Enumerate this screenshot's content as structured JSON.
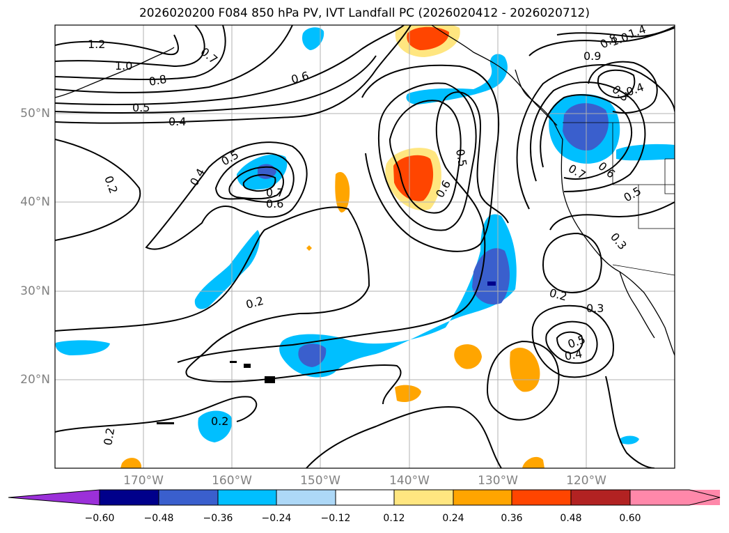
{
  "title": "2026020200 F084 850 hPa PV, IVT Landfall PC (2026020412 - 2026020712)",
  "axes": {
    "lon_labels": [
      "170°W",
      "160°W",
      "150°W",
      "140°W",
      "130°W",
      "120°W"
    ],
    "lat_labels": [
      "50°N",
      "40°N",
      "30°N",
      "20°N"
    ],
    "lon_range": [
      -180,
      -110
    ],
    "lat_range": [
      10,
      60
    ],
    "grid": true
  },
  "contour_labels": [
    "1.2",
    "1.0",
    "0.8",
    "0.7",
    "0.6",
    "0.5",
    "0.4",
    "0.5",
    "0.4",
    "0.7",
    "0.6",
    "0.2",
    "0.2",
    "0.5",
    "0.6",
    "0.2",
    "0.3",
    "0.5",
    "0.4",
    "0.2",
    "0.7",
    "0.6",
    "0.5",
    "0.3",
    "0.8",
    "1.0",
    "1.4",
    "0.9",
    "0.3",
    "0.4"
  ],
  "colorbar": {
    "ticks": [
      "−0.60",
      "−0.48",
      "−0.36",
      "−0.24",
      "−0.12",
      "0.12",
      "0.24",
      "0.36",
      "0.48",
      "0.60"
    ],
    "colors": [
      "#9b30d9",
      "#00008b",
      "#3a5fcd",
      "#00bfff",
      "#add8f7",
      "#ffffff",
      "#ffe680",
      "#ffa500",
      "#ff4500",
      "#b22222",
      "#ff88aa"
    ]
  },
  "colors": {
    "neg_strong": "#3a5fcd",
    "neg_mid": "#00bfff",
    "neg_weak": "#add8f7",
    "neg_extreme": "#00008b",
    "pos_weak": "#ffe680",
    "pos_mid": "#ffa500",
    "pos_strong": "#ff4500"
  }
}
